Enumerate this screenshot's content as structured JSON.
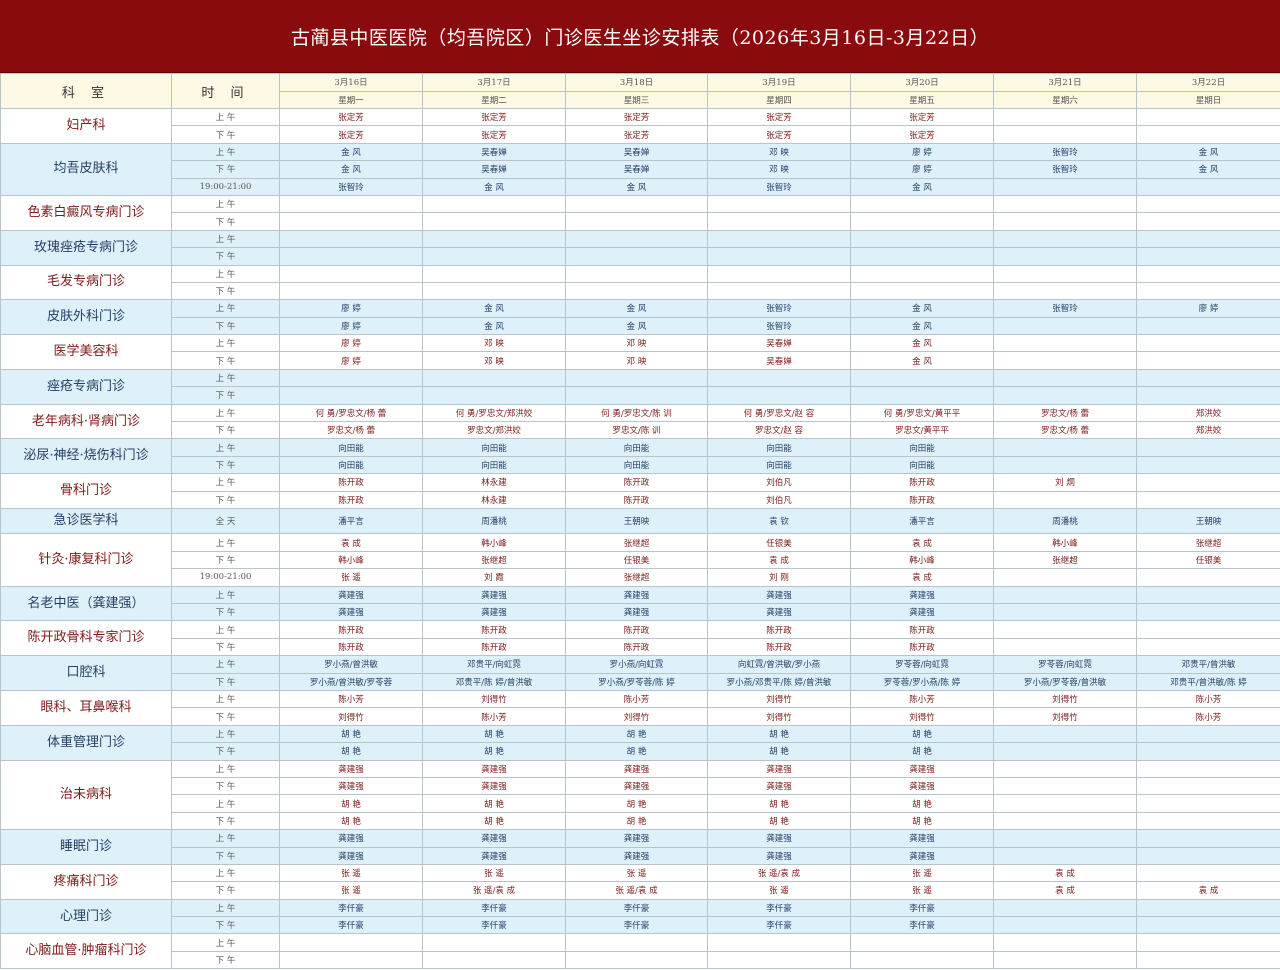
{
  "title": "古蔺县中医医院（均吾院区）门诊医生坐诊安排表（2026年3月16日-3月22日）",
  "table": {
    "header_dept": "科  室",
    "header_time": "时 间",
    "dates": [
      "3月16日",
      "3月17日",
      "3月18日",
      "3月19日",
      "3月20日",
      "3月21日",
      "3月22日"
    ],
    "weekdays": [
      "星期一",
      "星期二",
      "星期三",
      "星期四",
      "星期五",
      "星期六",
      "星期日"
    ],
    "departments": [
      {
        "name": "妇产科",
        "slots": [
          {
            "time": "上 午",
            "cells": [
              "张定芳",
              "张定芳",
              "张定芳",
              "张定芳",
              "张定芳",
              "",
              ""
            ]
          },
          {
            "time": "下 午",
            "cells": [
              "张定芳",
              "张定芳",
              "张定芳",
              "张定芳",
              "张定芳",
              "",
              ""
            ]
          }
        ]
      },
      {
        "name": "均吾皮肤科",
        "slots": [
          {
            "time": "上 午",
            "cells": [
              "金  风",
              "吴春婵",
              "吴春婵",
              "邓  映",
              "廖  婷",
              "张智玲",
              "金  风"
            ]
          },
          {
            "time": "下 午",
            "cells": [
              "金  风",
              "吴春婵",
              "吴春婵",
              "邓  映",
              "廖  婷",
              "张智玲",
              "金  风"
            ]
          },
          {
            "time": "19:00-21:00",
            "cells": [
              "张智玲",
              "金  风",
              "金  风",
              "张智玲",
              "金  风",
              "",
              ""
            ]
          }
        ]
      },
      {
        "name": "色素白癜风专病门诊",
        "slots": [
          {
            "time": "上 午",
            "cells": [
              "",
              "",
              "",
              "",
              "",
              "",
              ""
            ]
          },
          {
            "time": "下 午",
            "cells": [
              "",
              "",
              "",
              "",
              "",
              "",
              ""
            ]
          }
        ]
      },
      {
        "name": "玫瑰痤疮专病门诊",
        "slots": [
          {
            "time": "上 午",
            "cells": [
              "",
              "",
              "",
              "",
              "",
              "",
              ""
            ]
          },
          {
            "time": "下  午",
            "cells": [
              "",
              "",
              "",
              "",
              "",
              "",
              ""
            ]
          }
        ]
      },
      {
        "name": "毛发专病门诊",
        "slots": [
          {
            "time": "上 午",
            "cells": [
              "",
              "",
              "",
              "",
              "",
              "",
              ""
            ]
          },
          {
            "time": "下 午",
            "cells": [
              "",
              "",
              "",
              "",
              "",
              "",
              ""
            ]
          }
        ]
      },
      {
        "name": "皮肤外科门诊",
        "slots": [
          {
            "time": "上 午",
            "cells": [
              "廖  婷",
              "金  风",
              "金  风",
              "张智玲",
              "金  风",
              "张智玲",
              "廖  婷"
            ]
          },
          {
            "time": "下 午",
            "cells": [
              "廖  婷",
              "金  风",
              "金  风",
              "张智玲",
              "金  风",
              "",
              ""
            ]
          }
        ]
      },
      {
        "name": "医学美容科",
        "slots": [
          {
            "time": "上 午",
            "cells": [
              "廖  婷",
              "邓  映",
              "邓  映",
              "吴春婵",
              "金  风",
              "",
              ""
            ]
          },
          {
            "time": "下 午",
            "cells": [
              "廖  婷",
              "邓  映",
              "邓  映",
              "吴春婵",
              "金  风",
              "",
              ""
            ]
          }
        ]
      },
      {
        "name": "痤疮专病门诊",
        "slots": [
          {
            "time": "上 午",
            "cells": [
              "",
              "",
              "",
              "",
              "",
              "",
              ""
            ]
          },
          {
            "time": "下 午",
            "cells": [
              "",
              "",
              "",
              "",
              "",
              "",
              ""
            ]
          }
        ]
      },
      {
        "name": "老年病科·肾病门诊",
        "slots": [
          {
            "time": "上 午",
            "cells": [
              "何 勇/罗忠文/杨 蕾",
              "何 勇/罗忠文/郑洪姣",
              "何 勇/罗忠文/陈 训",
              "何 勇/罗忠文/赵 容",
              "何 勇/罗忠文/黄平平",
              "罗忠文/杨 蕾",
              "郑洪姣"
            ]
          },
          {
            "time": "下 午",
            "cells": [
              "罗忠文/杨 蕾",
              "罗忠文/郑洪姣",
              "罗忠文/陈 训",
              "罗忠文/赵 容",
              "罗忠文/黄平平",
              "罗忠文/杨 蕾",
              "郑洪姣"
            ]
          }
        ]
      },
      {
        "name": "泌尿·神经·烧伤科门诊",
        "slots": [
          {
            "time": "上 午",
            "cells": [
              "向田能",
              "向田能",
              "向田能",
              "向田能",
              "向田能",
              "",
              ""
            ]
          },
          {
            "time": "下 午",
            "cells": [
              "向田能",
              "向田能",
              "向田能",
              "向田能",
              "向田能",
              "",
              ""
            ]
          }
        ]
      },
      {
        "name": "骨科门诊",
        "slots": [
          {
            "time": "上 午",
            "cells": [
              "陈开政",
              "林永建",
              "陈开政",
              "刘伯凡",
              "陈开政",
              "刘  炯",
              ""
            ]
          },
          {
            "time": "下 午",
            "cells": [
              "陈开政",
              "林永建",
              "陈开政",
              "刘伯凡",
              "陈开政",
              "",
              ""
            ]
          }
        ]
      },
      {
        "name": "急诊医学科",
        "slots": [
          {
            "time": "全 天",
            "cells": [
              "潘平言",
              "周潘桃",
              "王朝映",
              "袁  钦",
              "潘平言",
              "周潘桃",
              "王朝映"
            ]
          }
        ]
      },
      {
        "name": "针灸·康复科门诊",
        "slots": [
          {
            "time": "上 午",
            "cells": [
              "袁  成",
              "韩小峰",
              "张继超",
              "任银美",
              "袁  成",
              "韩小峰",
              "张继超"
            ]
          },
          {
            "time": "下 午",
            "cells": [
              "韩小峰",
              "张继超",
              "任银美",
              "袁  成",
              "韩小峰",
              "张继超",
              "任银美"
            ]
          },
          {
            "time": "19:00-21:00",
            "cells": [
              "张  遥",
              "刘  霞",
              "张继超",
              "刘  刚",
              "袁  成",
              "",
              ""
            ]
          }
        ]
      },
      {
        "name": "名老中医（龚建强）",
        "slots": [
          {
            "time": "上 午",
            "cells": [
              "龚建强",
              "龚建强",
              "龚建强",
              "龚建强",
              "龚建强",
              "",
              ""
            ]
          },
          {
            "time": "下 午",
            "cells": [
              "龚建强",
              "龚建强",
              "龚建强",
              "龚建强",
              "龚建强",
              "",
              ""
            ]
          }
        ]
      },
      {
        "name": "陈开政骨科专家门诊",
        "slots": [
          {
            "time": "上 午",
            "cells": [
              "陈开政",
              "陈开政",
              "陈开政",
              "陈开政",
              "陈开政",
              "",
              ""
            ]
          },
          {
            "time": "下 午",
            "cells": [
              "陈开政",
              "陈开政",
              "陈开政",
              "陈开政",
              "陈开政",
              "",
              ""
            ]
          }
        ]
      },
      {
        "name": "口腔科",
        "slots": [
          {
            "time": "上 午",
            "cells": [
              "罗小燕/曾洪敏",
              "邓贵平/向虹霓",
              "罗小燕/向虹霓",
              "向虹霓/曾洪敏/罗小燕",
              "罗苓蓉/向虹霓",
              "罗苓蓉/向虹霓",
              "邓贵平/曾洪敏"
            ]
          },
          {
            "time": "下 午",
            "cells": [
              "罗小燕/曾洪敏/罗苓蓉",
              "邓贵平/陈 婷/曾洪敏",
              "罗小燕/罗苓蓉/陈 婷",
              "罗小燕/邓贵平/陈 婷/曾洪敏",
              "罗苓蓉/罗小燕/陈 婷",
              "罗小燕/罗苓蓉/曾洪敏",
              "邓贵平/曾洪敏/陈 婷"
            ]
          }
        ]
      },
      {
        "name": "眼科、耳鼻喉科",
        "slots": [
          {
            "time": "上 午",
            "cells": [
              "陈小芳",
              "刘得竹",
              "陈小芳",
              "刘得竹",
              "陈小芳",
              "刘得竹",
              "陈小芳"
            ]
          },
          {
            "time": "下 午",
            "cells": [
              "刘得竹",
              "陈小芳",
              "刘得竹",
              "刘得竹",
              "刘得竹",
              "刘得竹",
              "陈小芳"
            ]
          }
        ]
      },
      {
        "name": "体重管理门诊",
        "slots": [
          {
            "time": "上 午",
            "cells": [
              "胡  艳",
              "胡  艳",
              "胡  艳",
              "胡  艳",
              "胡  艳",
              "",
              ""
            ]
          },
          {
            "time": "下 午",
            "cells": [
              "胡  艳",
              "胡  艳",
              "胡  艳",
              "胡  艳",
              "胡  艳",
              "",
              ""
            ]
          }
        ]
      },
      {
        "name": "治未病科",
        "slots": [
          {
            "time": "上 午",
            "cells": [
              "龚建强",
              "龚建强",
              "龚建强",
              "龚建强",
              "龚建强",
              "",
              ""
            ]
          },
          {
            "time": "下 午",
            "cells": [
              "龚建强",
              "龚建强",
              "龚建强",
              "龚建强",
              "龚建强",
              "",
              ""
            ]
          },
          {
            "time": "上 午",
            "cells": [
              "胡  艳",
              "胡  艳",
              "胡  艳",
              "胡  艳",
              "胡  艳",
              "",
              ""
            ]
          },
          {
            "time": "下 午",
            "cells": [
              "胡  艳",
              "胡  艳",
              "胡  艳",
              "胡  艳",
              "胡  艳",
              "",
              ""
            ]
          }
        ]
      },
      {
        "name": "睡眠门诊",
        "slots": [
          {
            "time": "上 午",
            "cells": [
              "龚建强",
              "龚建强",
              "龚建强",
              "龚建强",
              "龚建强",
              "",
              ""
            ]
          },
          {
            "time": "下 午",
            "cells": [
              "龚建强",
              "龚建强",
              "龚建强",
              "龚建强",
              "龚建强",
              "",
              ""
            ]
          }
        ]
      },
      {
        "name": "疼痛科门诊",
        "slots": [
          {
            "time": "上 午",
            "cells": [
              "张  遥",
              "张  遥",
              "张  遥",
              "张  遥/袁  成",
              "张  遥",
              "袁  成",
              ""
            ]
          },
          {
            "time": "下 午",
            "cells": [
              "张  遥",
              "张  遥/袁  成",
              "张  遥/袁  成",
              "张  遥",
              "张  遥",
              "袁  成",
              "袁  成"
            ]
          }
        ]
      },
      {
        "name": "心理门诊",
        "slots": [
          {
            "time": "上 午",
            "cells": [
              "李仟豪",
              "李仟豪",
              "李仟豪",
              "李仟豪",
              "李仟豪",
              "",
              ""
            ]
          },
          {
            "time": "下 午",
            "cells": [
              "李仟豪",
              "李仟豪",
              "李仟豪",
              "李仟豪",
              "李仟豪",
              "",
              ""
            ]
          }
        ]
      },
      {
        "name": "心脑血管·肿瘤科门诊",
        "slots": [
          {
            "time": "上 午",
            "cells": [
              "",
              "",
              "",
              "",
              "",
              "",
              ""
            ]
          },
          {
            "time": "下 午",
            "cells": [
              "",
              "",
              "",
              "",
              "",
              "",
              ""
            ]
          }
        ]
      }
    ]
  },
  "colors": {
    "title_bg": "#8a0b0e",
    "header_bg": "#fdf9e4",
    "band_blue": "#def0f9",
    "text_red": "#7d1a1a",
    "text_blue": "#243f66"
  }
}
